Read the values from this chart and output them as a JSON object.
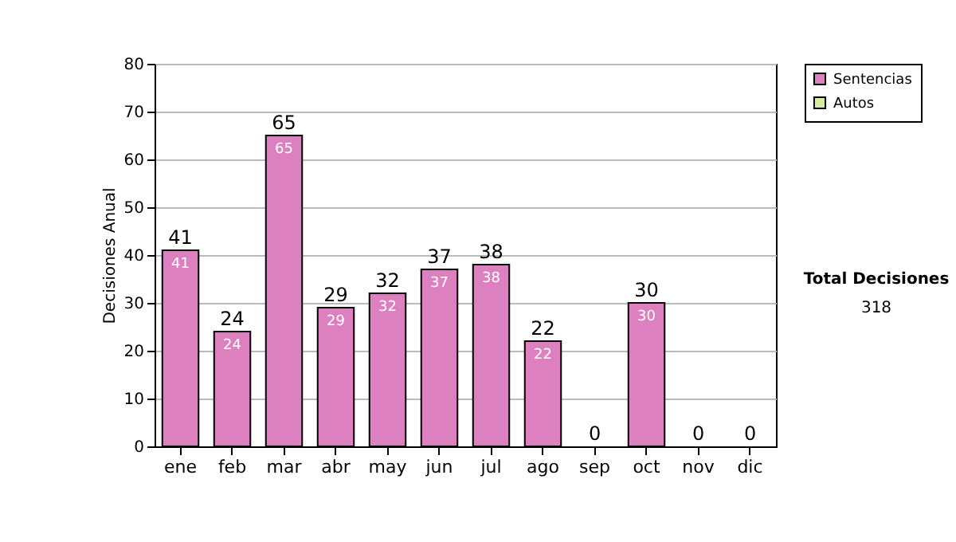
{
  "chart_data": {
    "type": "bar",
    "ylabel": "Decisiones Anual",
    "categories": [
      "ene",
      "feb",
      "mar",
      "abr",
      "may",
      "jun",
      "jul",
      "ago",
      "sep",
      "oct",
      "nov",
      "dic"
    ],
    "stacked": true,
    "series": [
      {
        "name": "Sentencias",
        "color": "#dd80c0",
        "values": [
          41,
          24,
          65,
          29,
          32,
          37,
          38,
          22,
          0,
          30,
          0,
          0
        ],
        "value_labels": [
          "41",
          "24",
          "65",
          "29",
          "32",
          "37",
          "38",
          "22",
          null,
          "30",
          null,
          null
        ]
      },
      {
        "name": "Autos",
        "color": "#d8eca0",
        "values": [
          0,
          0,
          0,
          0,
          0,
          0,
          0,
          0,
          0,
          0,
          0,
          0
        ]
      }
    ],
    "totals": [
      "41",
      "24",
      "65",
      "29",
      "32",
      "37",
      "38",
      "22",
      "0",
      "30",
      "0",
      "0"
    ],
    "ylim": [
      0,
      80
    ],
    "yticks": [
      0,
      10,
      20,
      30,
      40,
      50,
      60,
      70,
      80
    ],
    "grid": "y",
    "legend": "right",
    "annotations": [
      "Total Decisiones",
      "318"
    ]
  }
}
